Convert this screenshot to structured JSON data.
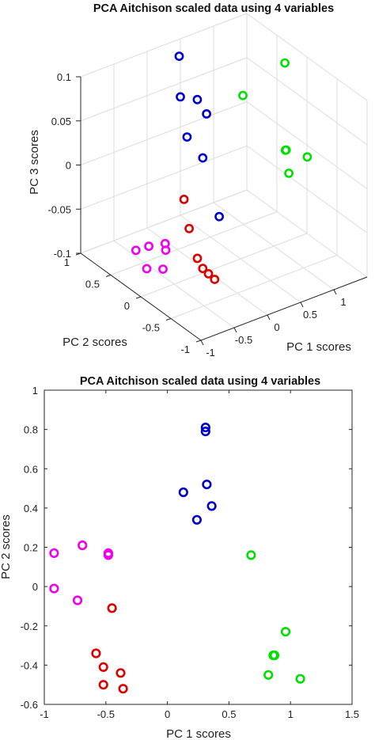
{
  "colors": {
    "blue": "#0000cc",
    "red": "#dd0000",
    "green": "#00e000",
    "magenta": "#ee00ee"
  },
  "chart_data": [
    {
      "type": "scatter3d",
      "title": "PCA Aitchison scaled data using 4 variables",
      "xlabel": "PC 1 scores",
      "ylabel": "PC 2 scores",
      "zlabel": "PC 3 scores",
      "xlim": [
        -1,
        1.5
      ],
      "ylim": [
        -1,
        1
      ],
      "zlim": [
        -0.1,
        0.1
      ],
      "xticks": [
        "-1",
        "-0.5",
        "0",
        "0.5",
        "1"
      ],
      "yticks": [
        "-1",
        "-0.5",
        "0",
        "0.5",
        "1"
      ],
      "zticks": [
        "-0.1",
        "-0.05",
        "0",
        "0.05",
        "0.1"
      ],
      "grid": true,
      "series": [
        {
          "color": "blue",
          "points": [
            [
              0.31,
              0.81,
              0.095
            ],
            [
              0.31,
              0.79,
              0.05
            ],
            [
              0.32,
              0.52,
              0.06
            ],
            [
              0.36,
              0.41,
              0.048
            ],
            [
              0.13,
              0.48,
              0.025
            ],
            [
              0.24,
              0.34,
              0.005
            ],
            [
              0.18,
              0.0,
              -0.043
            ]
          ]
        },
        {
          "color": "red",
          "points": [
            [
              -0.45,
              -0.11,
              0.0
            ],
            [
              -0.58,
              -0.34,
              -0.018
            ],
            [
              -0.52,
              -0.41,
              -0.05
            ],
            [
              -0.52,
              -0.5,
              -0.057
            ],
            [
              -0.38,
              -0.44,
              -0.07
            ],
            [
              -0.36,
              -0.52,
              -0.073
            ]
          ]
        },
        {
          "color": "green",
          "points": [
            [
              0.68,
              0.16,
              0.072
            ],
            [
              0.96,
              -0.23,
              0.12
            ],
            [
              0.86,
              -0.35,
              0.03
            ],
            [
              0.87,
              -0.35,
              0.03
            ],
            [
              0.82,
              -0.45,
              0.01
            ],
            [
              1.08,
              -0.47,
              0.022
            ]
          ]
        },
        {
          "color": "magenta",
          "points": [
            [
              -0.92,
              0.17,
              -0.058
            ],
            [
              -0.69,
              0.21,
              -0.062
            ],
            [
              -0.48,
              0.17,
              -0.063
            ],
            [
              -0.48,
              0.16,
              -0.07
            ],
            [
              -0.92,
              -0.01,
              -0.07
            ],
            [
              -0.73,
              -0.07,
              -0.073
            ]
          ]
        }
      ]
    },
    {
      "type": "scatter",
      "title": "PCA Aitchison scaled data using 4 variables",
      "xlabel": "PC 1 scores",
      "ylabel": "PC 2 scores",
      "xlim": [
        -1,
        1.5
      ],
      "ylim": [
        -0.6,
        1
      ],
      "xticks": [
        "-1",
        "-0.5",
        "0",
        "0.5",
        "1",
        "1.5"
      ],
      "yticks": [
        "-0.6",
        "-0.4",
        "-0.2",
        "0",
        "0.2",
        "0.4",
        "0.6",
        "0.8",
        "1"
      ],
      "grid": false,
      "series": [
        {
          "color": "blue",
          "points": [
            [
              0.31,
              0.81
            ],
            [
              0.31,
              0.79
            ],
            [
              0.32,
              0.52
            ],
            [
              0.36,
              0.41
            ],
            [
              0.13,
              0.48
            ],
            [
              0.24,
              0.34
            ]
          ]
        },
        {
          "color": "red",
          "points": [
            [
              -0.45,
              -0.11
            ],
            [
              -0.58,
              -0.34
            ],
            [
              -0.52,
              -0.41
            ],
            [
              -0.52,
              -0.5
            ],
            [
              -0.38,
              -0.44
            ],
            [
              -0.36,
              -0.52
            ]
          ]
        },
        {
          "color": "green",
          "points": [
            [
              0.68,
              0.16
            ],
            [
              0.96,
              -0.23
            ],
            [
              0.86,
              -0.35
            ],
            [
              0.87,
              -0.35
            ],
            [
              0.82,
              -0.45
            ],
            [
              1.08,
              -0.47
            ]
          ]
        },
        {
          "color": "magenta",
          "points": [
            [
              -0.92,
              0.17
            ],
            [
              -0.69,
              0.21
            ],
            [
              -0.48,
              0.17
            ],
            [
              -0.48,
              0.16
            ],
            [
              -0.92,
              -0.01
            ],
            [
              -0.73,
              -0.07
            ]
          ]
        }
      ]
    }
  ]
}
